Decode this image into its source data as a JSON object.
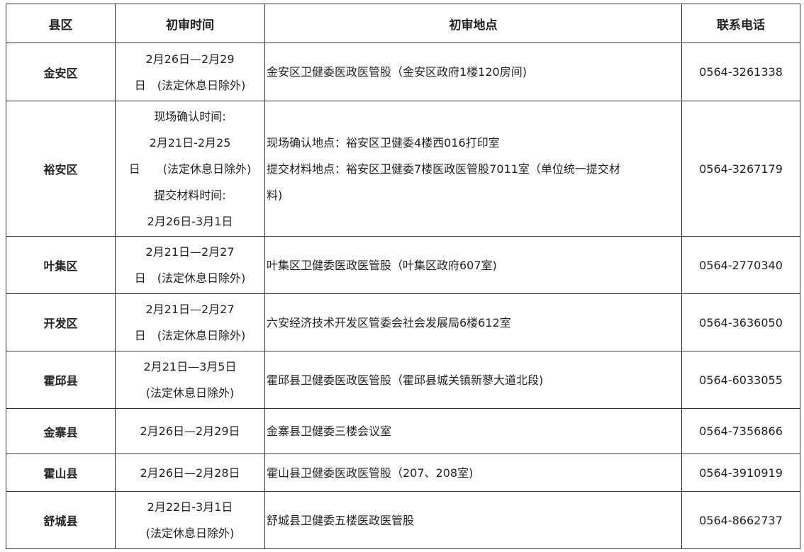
{
  "headers": [
    "县区",
    "初审时间",
    "初审地点",
    "联系电话"
  ],
  "rows": [
    {
      "county": "金安区",
      "time": [
        "2月26日—2月29",
        "日　(法定休息日除外)"
      ],
      "place": [
        "金安区卫健委医政医管股（金安区政府1楼120房间)"
      ],
      "phone": "0564-3261338"
    },
    {
      "county": "裕安区",
      "time": [
        "现场确认时间:",
        "2月21日-2月25",
        "日　　(法定休息日除外)",
        "提交材料时间:",
        "2月26日-3月1日"
      ],
      "place": [
        "现场确认地点：裕安区卫健委4楼西016打印室",
        "提交材料地点：裕安区卫健委7楼医政医管股7011室（单位统一提交材",
        "料)"
      ],
      "phone": "0564-3267179"
    },
    {
      "county": "叶集区",
      "time": [
        "2月21日—2月27",
        "日　(法定休息日除外)"
      ],
      "place": [
        "叶集区卫健委医政医管股（叶集区政府607室)"
      ],
      "phone": "0564-2770340"
    },
    {
      "county": "开发区",
      "time": [
        "2月21日—2月27",
        "日　(法定休息日除外)"
      ],
      "place": [
        "六安经济技术开发区管委会社会发展局6楼612室"
      ],
      "phone": "0564-3636050"
    },
    {
      "county": "霍邱县",
      "time": [
        "2月21日—3月5日",
        "(法定休息日除外)"
      ],
      "place": [
        "霍邱县卫健委医政医管股（霍邱县城关镇新蓼大道北段)"
      ],
      "phone": "0564-6033055"
    },
    {
      "county": "金寨县",
      "time": [
        "2月26日—2月29日"
      ],
      "place": [
        "金寨县卫健委三楼会议室"
      ],
      "phone": "0564-7356866"
    },
    {
      "county": "霍山县",
      "time": [
        "2月26日—2月28日"
      ],
      "place": [
        "霍山县卫健委医政医管股（207、208室)"
      ],
      "phone": "0564-3910919"
    },
    {
      "county": "舒城县",
      "time": [
        "2月22日-3月1日",
        "(法定休息日除外)"
      ],
      "place": [
        "舒城县卫健委五楼医政医管股"
      ],
      "phone": "0564-8662737"
    }
  ]
}
